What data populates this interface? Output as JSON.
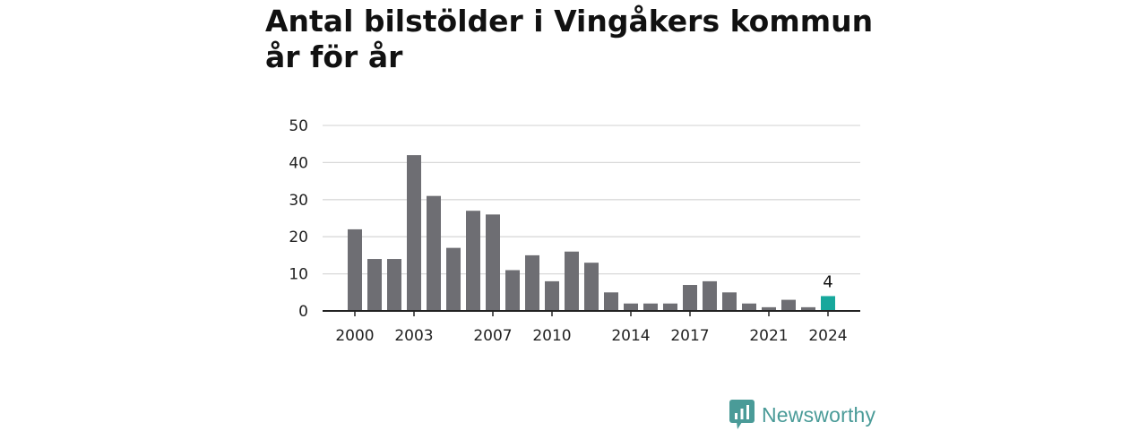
{
  "chart_data": {
    "type": "bar",
    "title": "Antal bilstölder i Vingåkers kommun år för år",
    "xlabel": "",
    "ylabel": "",
    "x": [
      2000,
      2001,
      2002,
      2003,
      2004,
      2005,
      2006,
      2007,
      2008,
      2009,
      2010,
      2011,
      2012,
      2013,
      2014,
      2015,
      2016,
      2017,
      2018,
      2019,
      2020,
      2021,
      2022,
      2023,
      2024
    ],
    "values": [
      22,
      14,
      14,
      42,
      31,
      17,
      27,
      26,
      11,
      15,
      8,
      16,
      13,
      5,
      2,
      2,
      2,
      7,
      8,
      5,
      2,
      1,
      3,
      1,
      4
    ],
    "ylim": [
      0,
      50
    ],
    "yticks": [
      0,
      10,
      20,
      30,
      40,
      50
    ],
    "xticks": [
      2000,
      2003,
      2007,
      2010,
      2014,
      2017,
      2021,
      2024
    ],
    "grid": "horizontal",
    "highlight_index": 24,
    "highlight_label": "4",
    "colors": {
      "bar": "#6e6e73",
      "highlight": "#17a89c",
      "grid": "#d9d9d9",
      "axis": "#222222"
    }
  },
  "brand": {
    "name": "Newsworthy",
    "icon": "bar-chart-speech-bubble-icon",
    "color": "#4a9b98"
  }
}
